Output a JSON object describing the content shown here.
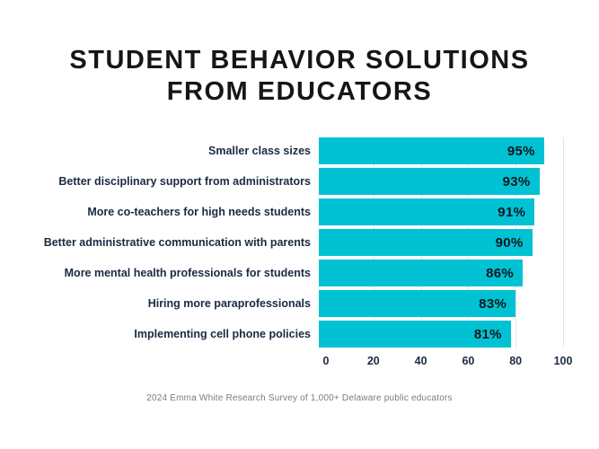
{
  "page": {
    "title_line1": "STUDENT BEHAVIOR SOLUTIONS",
    "title_line2": "FROM EDUCATORS"
  },
  "colors": {
    "bar": "#00C2D3",
    "title_text": "#161616",
    "label_text": "#1B2A41",
    "value_text": "#10161F",
    "tick_text": "#1B2A41",
    "footer_text": "#7B7B7B",
    "gridline": "#E5E5E5",
    "background": "#FFFFFF"
  },
  "chart_data": {
    "type": "bar",
    "orientation": "horizontal",
    "title": "STUDENT BEHAVIOR SOLUTIONS FROM EDUCATORS",
    "categories": [
      "Smaller class sizes",
      "Better disciplinary support from administrators",
      "More co-teachers for high needs students",
      "Better administrative communication with parents",
      "More mental health professionals for students",
      "Hiring more paraprofessionals",
      "Implementing cell phone policies"
    ],
    "values": [
      95,
      93,
      91,
      90,
      86,
      83,
      81
    ],
    "value_labels": [
      "95%",
      "93%",
      "91%",
      "90%",
      "86%",
      "83%",
      "81%"
    ],
    "xticks": [
      "0",
      "20",
      "40",
      "60",
      "80",
      "100"
    ],
    "xlim": [
      0,
      100
    ],
    "xlabel": "",
    "ylabel": "",
    "grid": "vertical-light",
    "legend": "none",
    "source_note": "2024 Emma White Research Survey of 1,000+ Delaware public educators"
  }
}
